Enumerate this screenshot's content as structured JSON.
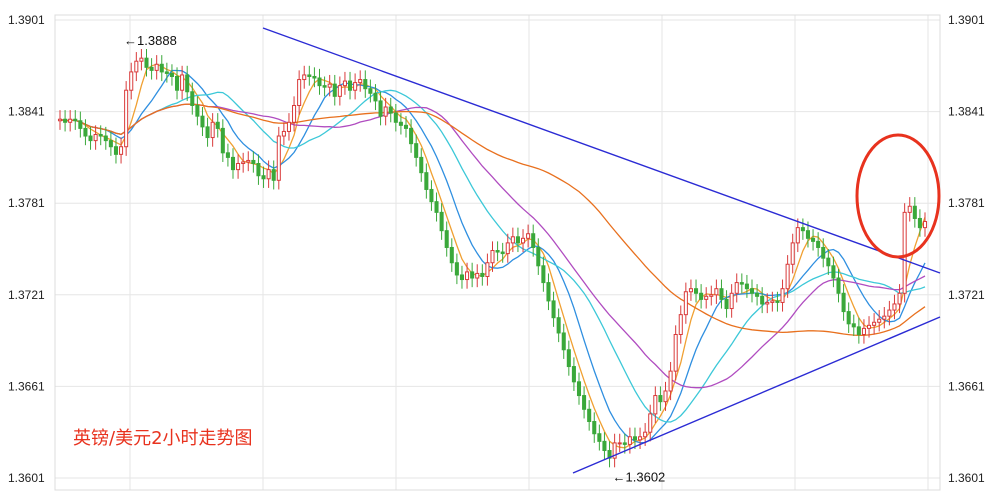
{
  "chart_data": {
    "type": "candlestick",
    "title": "",
    "caption": "英镑/美元2小时走势图",
    "ylim": [
      1.3601,
      1.3901
    ],
    "y_ticks": [
      "1.3901",
      "1.3841",
      "1.3781",
      "1.3721",
      "1.3661",
      "1.3601"
    ],
    "y_tick_values": [
      1.3901,
      1.3841,
      1.3781,
      1.3721,
      1.3661,
      1.3601
    ],
    "grid": true,
    "annotations": [
      {
        "label": "←1.3888",
        "value": 1.3888,
        "bar": 12
      },
      {
        "label": "←1.3602",
        "value": 1.3602,
        "bar": 108
      }
    ],
    "colors": {
      "up": "#d93a3a",
      "down": "#3aa83a",
      "trendline": "#2b2bd4",
      "highlight_circle": "#e8321e",
      "ma_orange": "#f0a032",
      "ma_blue": "#2f8fe0",
      "ma_cyan": "#3cc8d8",
      "ma_purple": "#b04cc0",
      "ma_darkorange": "#e8701e"
    },
    "close": [
      1.3836,
      1.3834,
      1.3836,
      1.3835,
      1.383,
      1.3825,
      1.3822,
      1.3826,
      1.3825,
      1.3822,
      1.3818,
      1.3813,
      1.3818,
      1.3855,
      1.3867,
      1.3874,
      1.3876,
      1.387,
      1.3868,
      1.3872,
      1.3867,
      1.3866,
      1.3864,
      1.3855,
      1.3865,
      1.3854,
      1.3845,
      1.3838,
      1.3831,
      1.3824,
      1.3834,
      1.383,
      1.3814,
      1.3811,
      1.3803,
      1.3807,
      1.3808,
      1.3809,
      1.3807,
      1.3799,
      1.3797,
      1.3803,
      1.3796,
      1.3825,
      1.3828,
      1.3834,
      1.3845,
      1.3862,
      1.3865,
      1.3864,
      1.3863,
      1.3858,
      1.3857,
      1.3859,
      1.3851,
      1.3858,
      1.3861,
      1.3855,
      1.386,
      1.3862,
      1.3856,
      1.3853,
      1.3848,
      1.3838,
      1.3844,
      1.384,
      1.3834,
      1.3832,
      1.383,
      1.382,
      1.3811,
      1.3801,
      1.379,
      1.3782,
      1.3775,
      1.3763,
      1.3752,
      1.3742,
      1.3734,
      1.3731,
      1.3736,
      1.3732,
      1.3735,
      1.3733,
      1.3742,
      1.375,
      1.3749,
      1.3748,
      1.3755,
      1.3759,
      1.3755,
      1.3758,
      1.3761,
      1.3752,
      1.374,
      1.3729,
      1.3717,
      1.3706,
      1.3696,
      1.3685,
      1.3674,
      1.3664,
      1.3655,
      1.3646,
      1.3638,
      1.363,
      1.3625,
      1.3619,
      1.3614,
      1.3624,
      1.3624,
      1.3623,
      1.3628,
      1.3626,
      1.3628,
      1.3631,
      1.3643,
      1.3655,
      1.3651,
      1.3658,
      1.3671,
      1.3695,
      1.3708,
      1.3723,
      1.3725,
      1.3722,
      1.3718,
      1.372,
      1.3721,
      1.3725,
      1.3718,
      1.3712,
      1.3722,
      1.3729,
      1.3728,
      1.3725,
      1.3722,
      1.372,
      1.3715,
      1.3716,
      1.3717,
      1.3716,
      1.3725,
      1.3741,
      1.3755,
      1.3765,
      1.3763,
      1.3758,
      1.3756,
      1.3752,
      1.3745,
      1.374,
      1.3732,
      1.3722,
      1.371,
      1.3702,
      1.37,
      1.3695,
      1.3699,
      1.3701,
      1.3703,
      1.3705,
      1.3707,
      1.3711,
      1.3715,
      1.3722,
      1.3775,
      1.3779,
      1.3771,
      1.3765,
      1.3769
    ],
    "open": [
      1.3835,
      1.3836,
      1.3834,
      1.3836,
      1.3835,
      1.383,
      1.3825,
      1.3822,
      1.3826,
      1.3825,
      1.3822,
      1.3818,
      1.3813,
      1.3818,
      1.3855,
      1.3867,
      1.3874,
      1.3876,
      1.387,
      1.3868,
      1.3872,
      1.3867,
      1.3866,
      1.3864,
      1.3855,
      1.3865,
      1.3854,
      1.3845,
      1.3838,
      1.3831,
      1.3824,
      1.3834,
      1.383,
      1.3814,
      1.3811,
      1.3803,
      1.3807,
      1.3808,
      1.3809,
      1.3807,
      1.3799,
      1.3797,
      1.3803,
      1.3796,
      1.3825,
      1.3828,
      1.3834,
      1.3845,
      1.3862,
      1.3865,
      1.3864,
      1.3863,
      1.3858,
      1.3857,
      1.3859,
      1.3851,
      1.3858,
      1.3861,
      1.3855,
      1.386,
      1.3862,
      1.3856,
      1.3853,
      1.3848,
      1.3838,
      1.3844,
      1.384,
      1.3834,
      1.3832,
      1.383,
      1.382,
      1.3811,
      1.3801,
      1.379,
      1.3782,
      1.3775,
      1.3763,
      1.3752,
      1.3742,
      1.3734,
      1.3731,
      1.3736,
      1.3732,
      1.3735,
      1.3733,
      1.3742,
      1.375,
      1.3749,
      1.3748,
      1.3755,
      1.3759,
      1.3755,
      1.3758,
      1.3761,
      1.3752,
      1.374,
      1.3729,
      1.3717,
      1.3706,
      1.3696,
      1.3685,
      1.3674,
      1.3664,
      1.3655,
      1.3646,
      1.3638,
      1.363,
      1.3625,
      1.3619,
      1.3614,
      1.3624,
      1.3624,
      1.3623,
      1.3628,
      1.3626,
      1.3628,
      1.3631,
      1.3643,
      1.3655,
      1.3651,
      1.3658,
      1.3671,
      1.3695,
      1.3708,
      1.3723,
      1.3725,
      1.3722,
      1.3718,
      1.372,
      1.3721,
      1.3725,
      1.3718,
      1.3712,
      1.3722,
      1.3729,
      1.3728,
      1.3725,
      1.3722,
      1.372,
      1.3715,
      1.3716,
      1.3717,
      1.3716,
      1.3725,
      1.3741,
      1.3755,
      1.3765,
      1.3763,
      1.3758,
      1.3756,
      1.3752,
      1.3745,
      1.374,
      1.3732,
      1.3722,
      1.371,
      1.3702,
      1.37,
      1.3695,
      1.3699,
      1.3701,
      1.3703,
      1.3705,
      1.3707,
      1.3711,
      1.3715,
      1.3722,
      1.3775,
      1.3779,
      1.3771,
      1.3765
    ]
  }
}
